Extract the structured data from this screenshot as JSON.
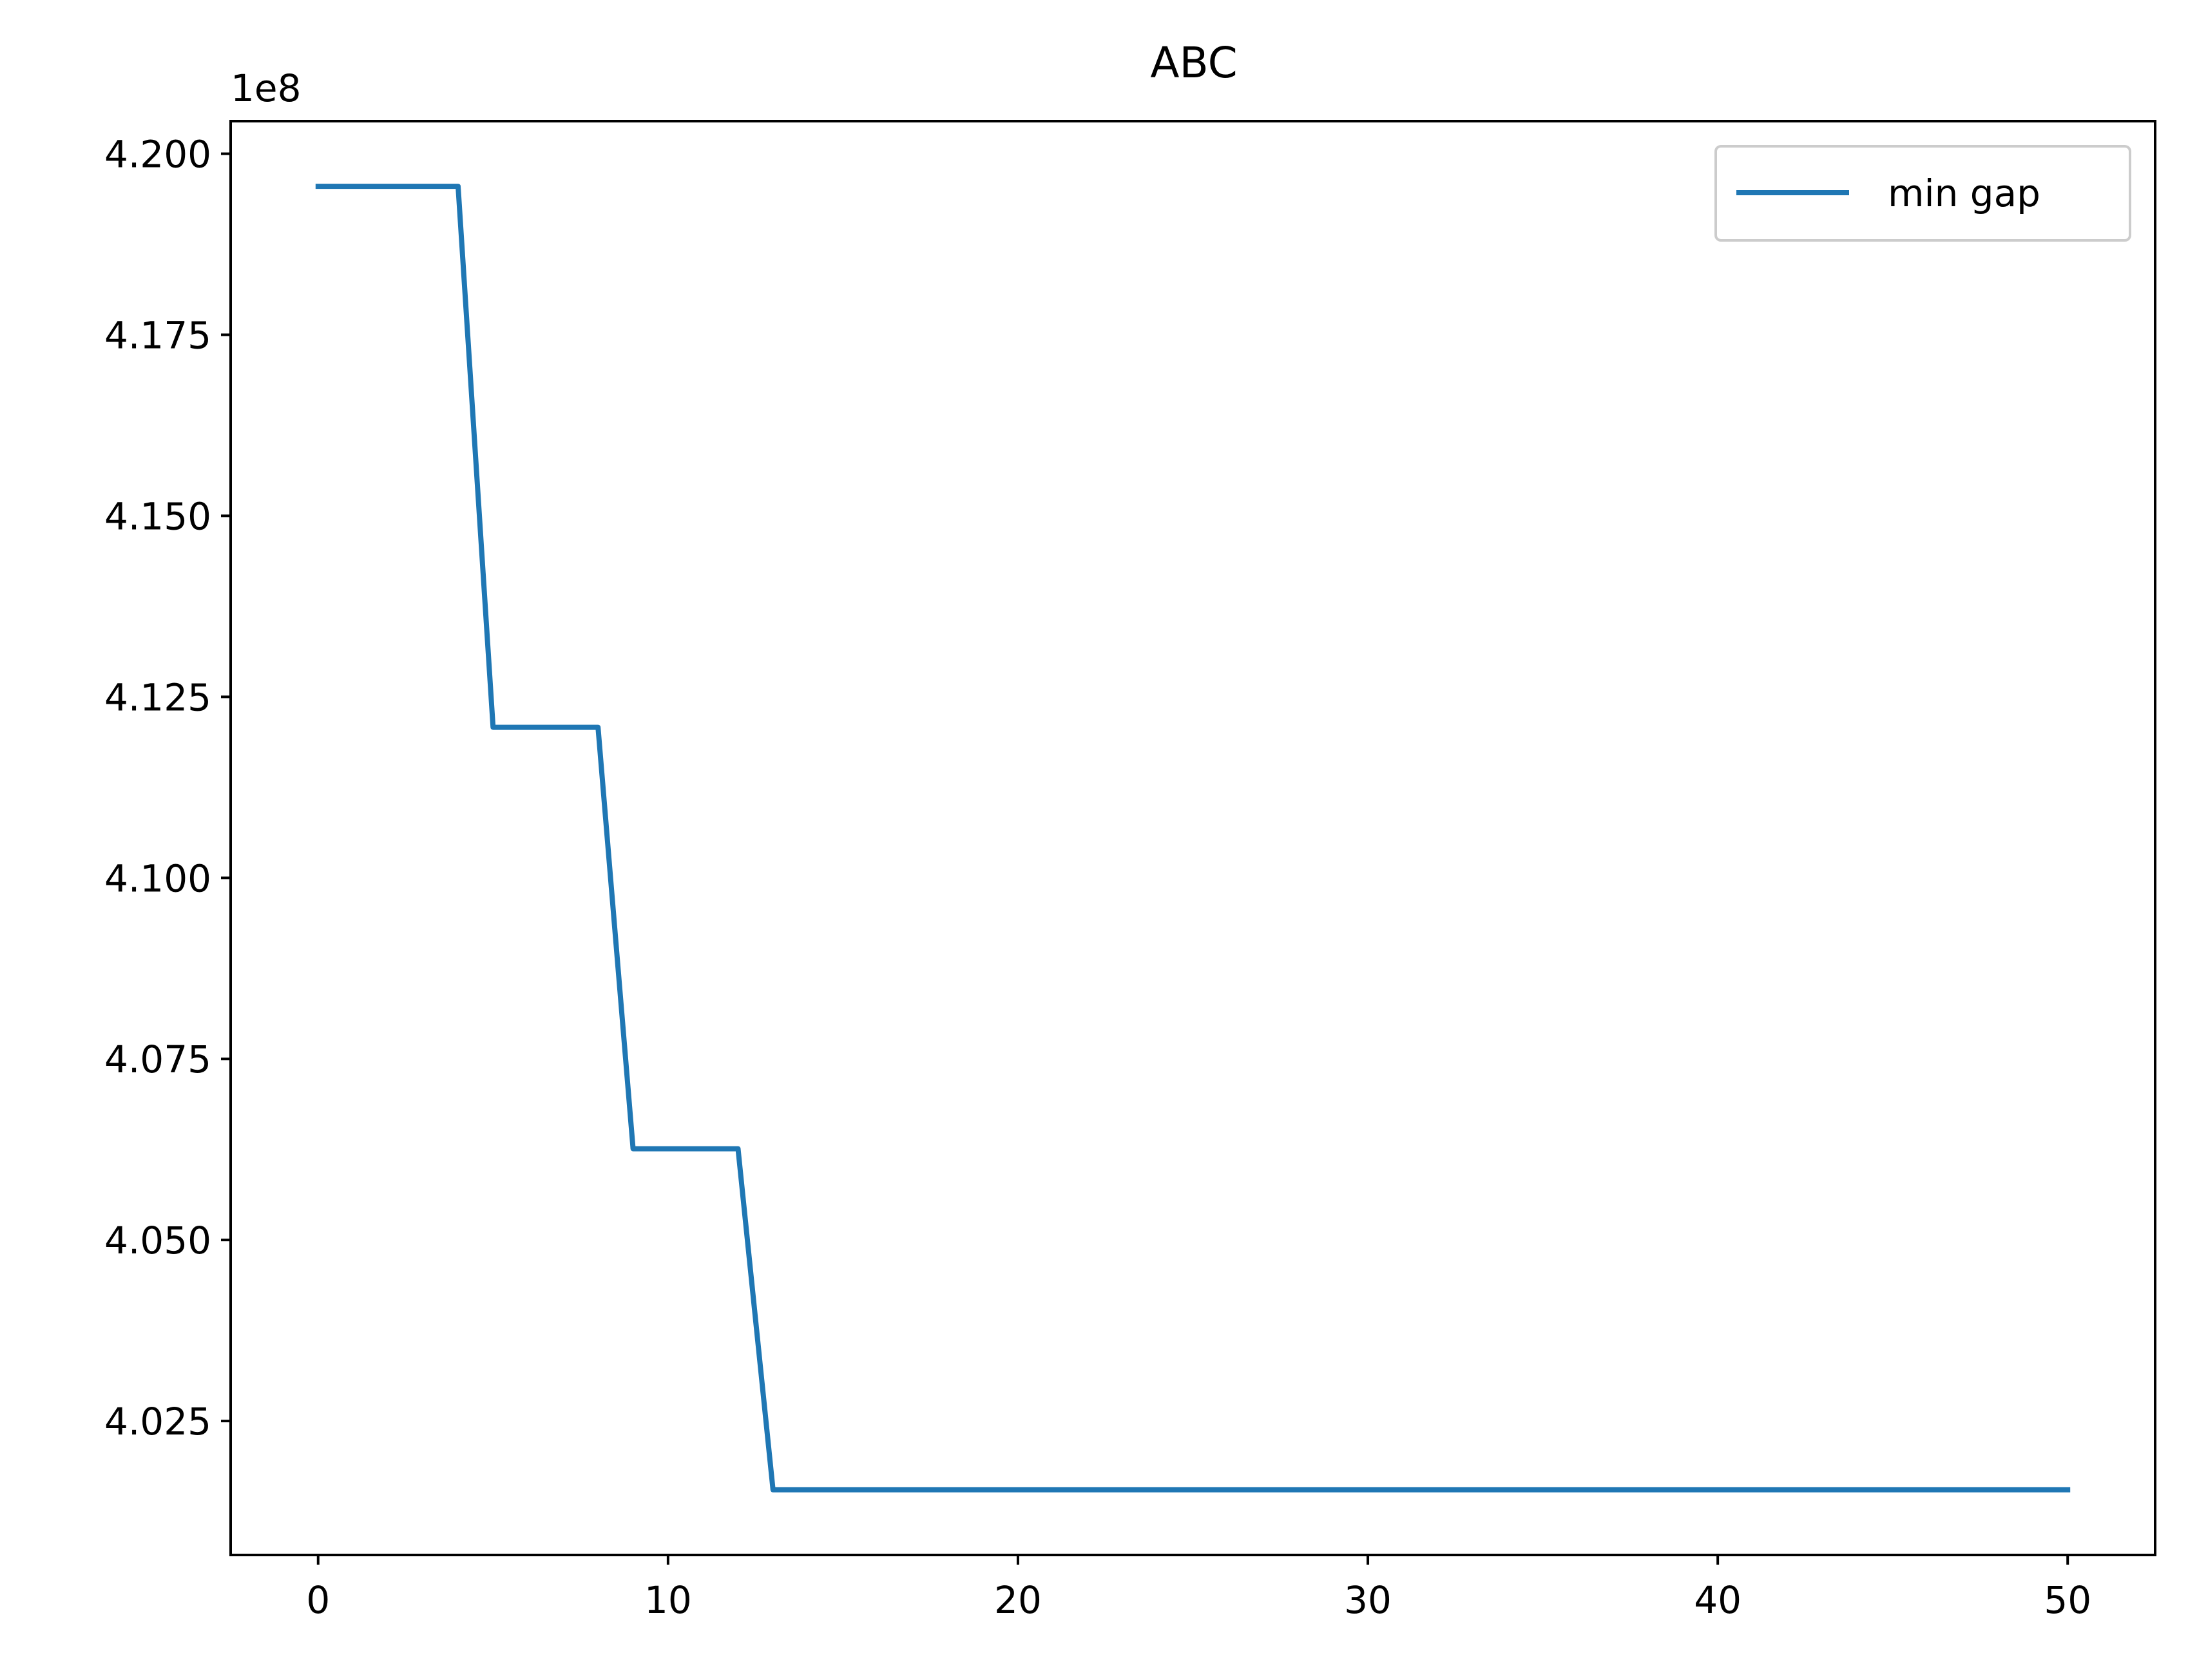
{
  "chart_data": {
    "type": "line",
    "title": "ABC",
    "xlabel": "",
    "ylabel": "",
    "y_offset_label": "1e8",
    "xlim": [
      -2.5,
      52.5
    ],
    "ylim": [
      4.0065,
      4.2045
    ],
    "x_ticks": [
      0,
      10,
      20,
      30,
      40,
      50
    ],
    "x_tick_labels": [
      "0",
      "10",
      "20",
      "30",
      "40",
      "50"
    ],
    "y_ticks": [
      4.025,
      4.05,
      4.075,
      4.1,
      4.125,
      4.15,
      4.175,
      4.2
    ],
    "y_tick_labels": [
      "4.025",
      "4.050",
      "4.075",
      "4.100",
      "4.125",
      "4.150",
      "4.175",
      "4.200"
    ],
    "grid": false,
    "legend_position": "top-right",
    "series": [
      {
        "name": "min gap",
        "color": "#1f77b4",
        "x": [
          0,
          1,
          2,
          3,
          4,
          5,
          6,
          7,
          8,
          9,
          10,
          11,
          12,
          13,
          14,
          15,
          16,
          17,
          18,
          19,
          20,
          21,
          22,
          23,
          24,
          25,
          26,
          27,
          28,
          29,
          30,
          31,
          32,
          33,
          34,
          35,
          36,
          37,
          38,
          39,
          40,
          41,
          42,
          43,
          44,
          45,
          46,
          47,
          48,
          49,
          50
        ],
        "values": [
          4.1955,
          4.1955,
          4.1955,
          4.1955,
          4.1955,
          4.1208,
          4.1208,
          4.1208,
          4.1208,
          4.0626,
          4.0626,
          4.0626,
          4.0626,
          4.0155,
          4.0155,
          4.0155,
          4.0155,
          4.0155,
          4.0155,
          4.0155,
          4.0155,
          4.0155,
          4.0155,
          4.0155,
          4.0155,
          4.0155,
          4.0155,
          4.0155,
          4.0155,
          4.0155,
          4.0155,
          4.0155,
          4.0155,
          4.0155,
          4.0155,
          4.0155,
          4.0155,
          4.0155,
          4.0155,
          4.0155,
          4.0155,
          4.0155,
          4.0155,
          4.0155,
          4.0155,
          4.0155,
          4.0155,
          4.0155,
          4.0155,
          4.0155,
          4.0155
        ]
      }
    ]
  }
}
